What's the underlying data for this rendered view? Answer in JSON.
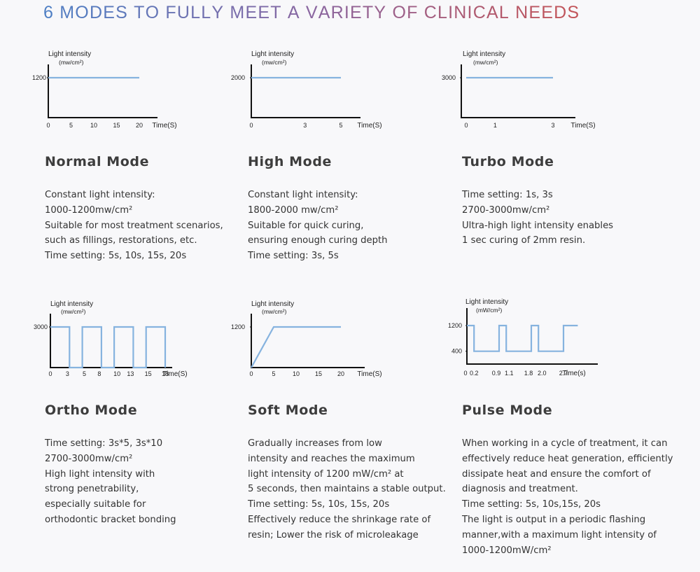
{
  "heading": "6 MODES TO FULLY MEET A VARIETY OF CLINICAL NEEDS",
  "colors": {
    "line": "#86b3df",
    "axis": "#111111",
    "title_gradient": [
      "#4f7fc4",
      "#8a66a0",
      "#c2555a"
    ]
  },
  "modes": [
    {
      "name": "Normal Mode",
      "description": [
        "Constant light intensity:",
        "1000-1200mw/cm²",
        "Suitable for most treatment scenarios,",
        "such as fillings, restorations, etc.",
        "Time setting: 5s, 10s, 15s, 20s"
      ]
    },
    {
      "name": "High Mode",
      "description": [
        "Constant light intensity:",
        "1800-2000 mw/cm²",
        "Suitable for quick curing,",
        "ensuring enough curing depth",
        "Time setting: 3s, 5s"
      ]
    },
    {
      "name": "Turbo Mode",
      "description": [
        "Time setting: 1s, 3s",
        "2700-3000mw/cm²",
        "Ultra-high light intensity enables",
        "1 sec curing of 2mm resin."
      ]
    },
    {
      "name": "Ortho Mode",
      "description": [
        "Time setting: 3s*5, 3s*10",
        "2700-3000mw/cm²",
        "High light intensity with",
        "strong penetrability,",
        "especially suitable for",
        "orthodontic bracket bonding"
      ]
    },
    {
      "name": "Soft Mode",
      "description": [
        "Gradually increases from low",
        "intensity and reaches the maximum",
        "light intensity of 1200    mW/cm² at",
        "5 seconds, then maintains a stable output.",
        "Time setting: 5s, 10s, 15s, 20s",
        "Effectively reduce the shrinkage rate of",
        "resin; Lower the risk of microleakage"
      ]
    },
    {
      "name": "Pulse Mode",
      "description": [
        "When working in a cycle of treatment, it can",
        "effectively reduce heat generation, efficiently",
        "dissipate heat and ensure the comfort of",
        "diagnosis and treatment.",
        "Time setting: 5s, 10s,15s, 20s",
        "The light is output in a periodic flashing",
        "manner,with a maximum light intensity of",
        "1000-1200mW/cm²"
      ]
    }
  ],
  "chart_data": [
    {
      "type": "line",
      "title": "",
      "ylabel": "Light intensity",
      "yunit": "(mw/cm²)",
      "xlabel": "Time(S)",
      "x_ticks": [
        "0",
        "5",
        "10",
        "15",
        "20"
      ],
      "y_ticks": [
        "1200"
      ],
      "x": [
        0,
        20
      ],
      "y": [
        1200,
        1200
      ],
      "xlim": [
        0,
        20
      ],
      "ylim": [
        0,
        1200
      ]
    },
    {
      "type": "line",
      "title": "",
      "ylabel": "Light intensity",
      "yunit": "(mw/cm²)",
      "xlabel": "Time(S)",
      "x_ticks": [
        "0",
        "3",
        "5"
      ],
      "y_ticks": [
        "2000"
      ],
      "x": [
        0,
        5
      ],
      "y": [
        2000,
        2000
      ],
      "xlim": [
        0,
        5
      ],
      "ylim": [
        0,
        2000
      ]
    },
    {
      "type": "line",
      "title": "",
      "ylabel": "Light intensity",
      "yunit": "(mw/cm²)",
      "xlabel": "Time(S)",
      "x_ticks": [
        "0",
        "1",
        "3"
      ],
      "y_ticks": [
        "3000"
      ],
      "x": [
        0,
        3
      ],
      "y": [
        3000,
        3000
      ],
      "xlim": [
        0,
        3
      ],
      "ylim": [
        0,
        3000
      ]
    },
    {
      "type": "line",
      "title": "",
      "ylabel": "Light intensity",
      "yunit": "(mw/cm²)",
      "xlabel": "Time(S)",
      "x_ticks": [
        "0",
        "3",
        "5",
        "8",
        "10",
        "13",
        "15",
        "18"
      ],
      "y_ticks": [
        "3000"
      ],
      "x": [
        0,
        3,
        3,
        5,
        5,
        8,
        8,
        10,
        10,
        13,
        13,
        15,
        15,
        18,
        18
      ],
      "y": [
        3000,
        3000,
        0,
        0,
        3000,
        3000,
        0,
        0,
        3000,
        3000,
        0,
        0,
        3000,
        3000,
        0
      ],
      "xlim": [
        0,
        18
      ],
      "ylim": [
        0,
        3000
      ]
    },
    {
      "type": "line",
      "title": "",
      "ylabel": "Light intensity",
      "yunit": "(mw/cm²)",
      "xlabel": "Time(S)",
      "x_ticks": [
        "0",
        "5",
        "10",
        "15",
        "20"
      ],
      "y_ticks": [
        "1200"
      ],
      "x": [
        0,
        5,
        20
      ],
      "y": [
        0,
        1200,
        1200
      ],
      "xlim": [
        0,
        20
      ],
      "ylim": [
        0,
        1200
      ]
    },
    {
      "type": "line",
      "title": "",
      "ylabel": "Light intensity",
      "yunit": "(mW/cm²)",
      "xlabel": "Time(s)",
      "x_ticks": [
        "0",
        "0.2",
        "0.9",
        "1.1",
        "1.8",
        "2.0",
        "2.7"
      ],
      "y_ticks": [
        "400",
        "1200"
      ],
      "x": [
        0,
        0.2,
        0.2,
        0.9,
        0.9,
        1.1,
        1.1,
        1.8,
        1.8,
        2.0,
        2.0,
        2.7,
        2.7,
        3.1
      ],
      "y": [
        1200,
        1200,
        400,
        400,
        1200,
        1200,
        400,
        400,
        1200,
        1200,
        400,
        400,
        1200,
        1200
      ],
      "xlim": [
        0,
        3.1
      ],
      "ylim": [
        0,
        1200
      ]
    }
  ]
}
